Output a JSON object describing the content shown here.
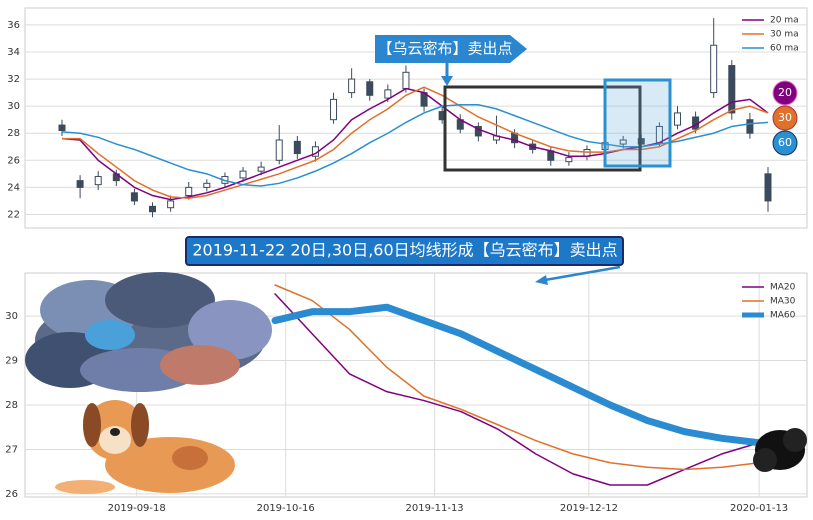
{
  "chart_data": [
    {
      "type": "candlestick",
      "open": [
        28.6,
        24.5,
        24.2,
        25,
        23.6,
        22.6,
        22.5,
        23.4,
        24,
        24.3,
        24.7,
        25.2,
        26,
        27.4,
        26.3,
        29,
        31,
        31.8,
        30.6,
        31.3,
        31,
        29.6,
        29,
        28.5,
        27.5,
        28,
        27.2,
        26.7,
        25.9,
        26.3,
        26.8,
        27.2,
        27.6,
        27.3,
        28.6,
        29.2,
        31,
        33,
        29,
        25
      ],
      "high": [
        29,
        24.9,
        25.2,
        25.3,
        23.9,
        22.9,
        23.4,
        24.4,
        24.6,
        25.1,
        25.5,
        25.9,
        28.6,
        27.8,
        27.4,
        31,
        32.8,
        32,
        31.6,
        33,
        31.3,
        30,
        29.4,
        28.8,
        29.3,
        28.3,
        27.5,
        27,
        26.6,
        27.1,
        27.6,
        27.8,
        27.9,
        28.8,
        30,
        29.6,
        36.5,
        33.4,
        29.5,
        25.5
      ],
      "low": [
        27.8,
        23.2,
        23.8,
        24.1,
        22.7,
        21.8,
        22.2,
        23.1,
        23.7,
        24,
        24.4,
        24.9,
        25.7,
        26.1,
        25.9,
        28.7,
        30.6,
        30.4,
        30.3,
        31,
        29.6,
        28.7,
        28,
        27.4,
        27.2,
        26.9,
        26.5,
        25.6,
        25.6,
        26,
        26.5,
        26.9,
        26.8,
        27,
        28.3,
        28,
        30.6,
        29,
        27.6,
        22.2
      ],
      "close": [
        28.2,
        24,
        24.8,
        24.5,
        23,
        22.2,
        23,
        24,
        24.3,
        24.8,
        25.2,
        25.5,
        27.5,
        26.5,
        27,
        30.5,
        32,
        30.8,
        31.2,
        32.5,
        30,
        29,
        28.3,
        27.8,
        27.8,
        27.3,
        26.8,
        26,
        26.2,
        26.8,
        27.3,
        27.5,
        27.2,
        28.5,
        29.5,
        28.3,
        34.5,
        29.5,
        28,
        23
      ],
      "candle_color": "#3b4a5c",
      "series": [
        {
          "name": "20 ma",
          "color": "#800080",
          "values": [
            27.6,
            27.5,
            26,
            25,
            24,
            23.4,
            23.1,
            23.3,
            23.6,
            24,
            24.5,
            25,
            25.5,
            26,
            26.5,
            27.5,
            29,
            29.8,
            30.5,
            31.3,
            31,
            30,
            29,
            28.3,
            27.8,
            27.5,
            27,
            26.7,
            26.3,
            26.3,
            26.5,
            26.8,
            27,
            27.3,
            28,
            28.6,
            29.5,
            30.3,
            30.5,
            29.5
          ]
        },
        {
          "name": "30 ma",
          "color": "#e0702a",
          "values": [
            27.6,
            27.6,
            26.5,
            25.5,
            24.5,
            23.8,
            23.3,
            23.2,
            23.4,
            23.8,
            24.2,
            24.6,
            25,
            25.5,
            26,
            26.8,
            28,
            29,
            29.8,
            30.8,
            31.4,
            30.8,
            30,
            29.2,
            28.6,
            28,
            27.5,
            27,
            26.7,
            26.6,
            26.6,
            26.8,
            26.8,
            27,
            27.6,
            28.2,
            29,
            29.7,
            30,
            29.5
          ]
        },
        {
          "name": "60 ma",
          "color": "#2a90d0",
          "values": [
            28.1,
            28,
            27.7,
            27.2,
            26.8,
            26.3,
            25.8,
            25.3,
            25,
            24.5,
            24.2,
            24.1,
            24.3,
            24.7,
            25.2,
            25.8,
            26.5,
            27.3,
            28,
            28.8,
            29.5,
            30,
            30.1,
            30.1,
            29.8,
            29.3,
            28.8,
            28.3,
            27.8,
            27.4,
            27.2,
            27,
            27,
            27.2,
            27.4,
            27.7,
            28,
            28.5,
            28.7,
            28.8
          ]
        }
      ],
      "ylim": [
        21,
        37.25
      ],
      "yticks": [
        22,
        24,
        26,
        28,
        30,
        32,
        34,
        36
      ],
      "grid": true,
      "legend": "upper right",
      "callout": "【乌云密布】卖出点",
      "badges": [
        "20",
        "30",
        "60"
      ]
    },
    {
      "type": "line",
      "title": "2019-11-22 20日,30日,60日均线形成【乌云密布】卖出点",
      "x": [
        "2019-10-14",
        "2019-10-21",
        "2019-10-28",
        "2019-11-04",
        "2019-11-11",
        "2019-11-18",
        "2019-11-25",
        "2019-12-02",
        "2019-12-09",
        "2019-12-16",
        "2019-12-23",
        "2019-12-30",
        "2020-01-06",
        "2020-01-13",
        "2020-01-17"
      ],
      "series": [
        {
          "name": "MA20",
          "color": "#800080",
          "width": 1.5,
          "values": [
            30.5,
            29.6,
            28.7,
            28.3,
            28.1,
            27.85,
            27.45,
            26.9,
            26.45,
            26.2,
            26.2,
            26.55,
            26.9,
            27.15,
            27.3
          ]
        },
        {
          "name": "MA30",
          "color": "#e0702a",
          "width": 1.5,
          "values": [
            30.7,
            30.35,
            29.7,
            28.85,
            28.2,
            27.9,
            27.55,
            27.2,
            26.9,
            26.7,
            26.6,
            26.55,
            26.6,
            26.7,
            27.0
          ]
        },
        {
          "name": "MA60",
          "color": "#2a8bd0",
          "width": 7,
          "values": [
            29.9,
            30.1,
            30.1,
            30.2,
            29.9,
            29.6,
            29.2,
            28.8,
            28.4,
            28.0,
            27.65,
            27.4,
            27.25,
            27.15,
            27.1
          ]
        }
      ],
      "xlim": [
        "2019-08-28",
        "2020-01-22"
      ],
      "xticks": [
        "2019-09-18",
        "2019-10-16",
        "2019-11-13",
        "2019-12-12",
        "2020-01-13"
      ],
      "ylim": [
        25.93,
        30.97
      ],
      "yticks": [
        26,
        27,
        28,
        29,
        30
      ],
      "grid": true,
      "legend": "upper right"
    }
  ]
}
